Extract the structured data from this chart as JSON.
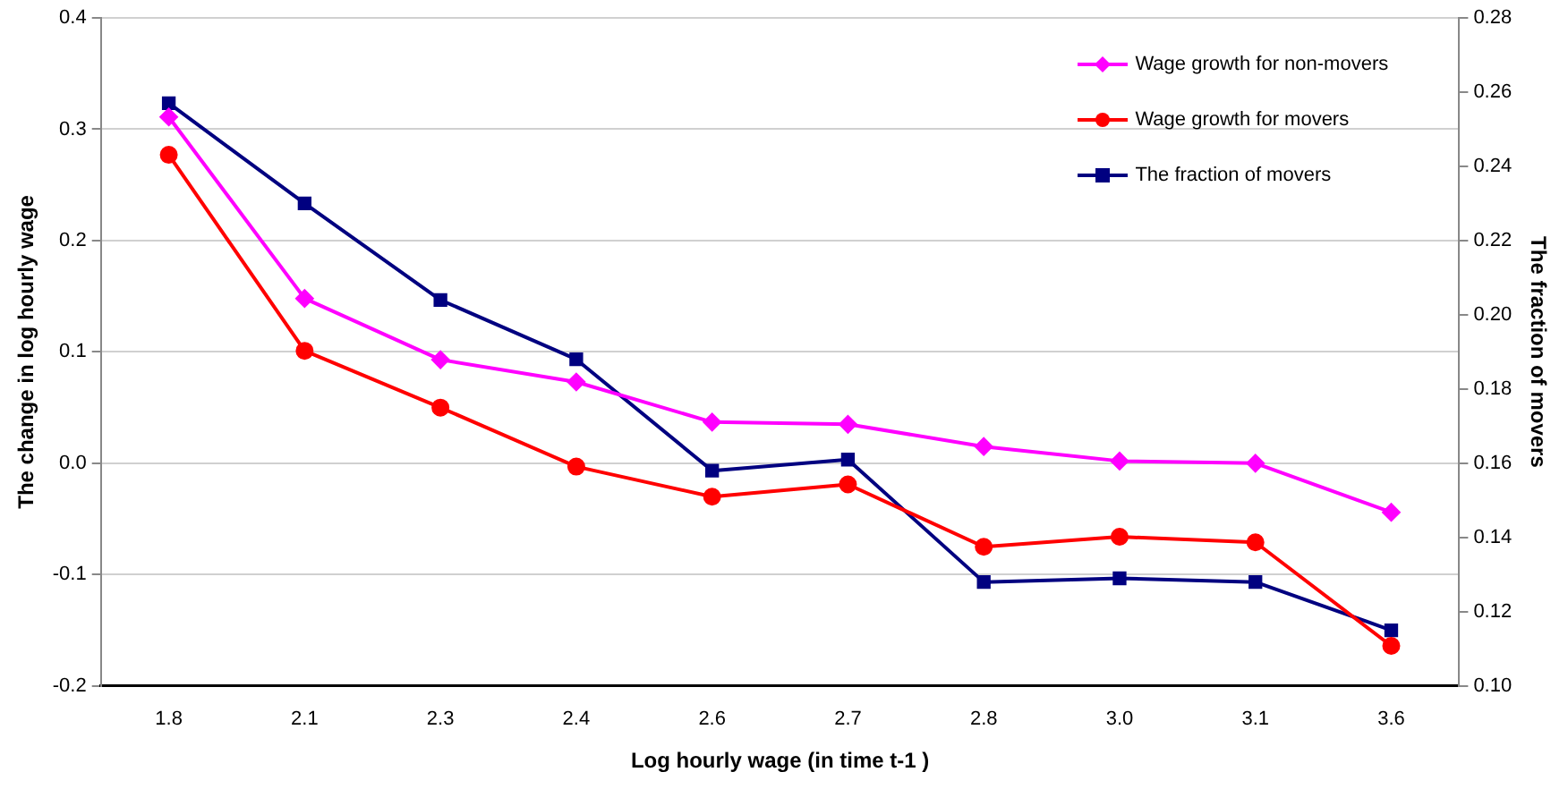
{
  "chart_data": {
    "type": "line",
    "categories": [
      "1.8",
      "2.1",
      "2.3",
      "2.4",
      "2.6",
      "2.7",
      "2.8",
      "3.0",
      "3.1",
      "3.6"
    ],
    "series": [
      {
        "name": "Wage growth for non-movers",
        "color": "#ff00ff",
        "marker": "diamond",
        "values": [
          0.311,
          0.148,
          0.093,
          0.073,
          0.037,
          0.035,
          0.015,
          0.002,
          0.0,
          -0.044
        ]
      },
      {
        "name": "Wage growth for movers",
        "color": "#ff0000",
        "marker": "circle",
        "values": [
          0.277,
          0.101,
          0.05,
          -0.003,
          -0.03,
          -0.019,
          -0.075,
          -0.066,
          -0.071,
          -0.164
        ]
      },
      {
        "name": "The fraction of movers",
        "color": "#000080",
        "marker": "square",
        "axis": "y2",
        "values": [
          0.257,
          0.23,
          0.204,
          0.188,
          0.158,
          0.161,
          0.128,
          0.129,
          0.128,
          0.115
        ]
      }
    ],
    "xlabel": "Log hourly wage (in time t-1 )",
    "ylabel": "The change in log hourly wage",
    "y2label": "The fraction of movers",
    "ylim": [
      -0.2,
      0.4
    ],
    "yticks": [
      {
        "value": -0.2,
        "label": "-0.2"
      },
      {
        "value": -0.1,
        "label": "-0.1"
      },
      {
        "value": 0,
        "label": "0.0"
      },
      {
        "value": 0.1,
        "label": "0.1"
      },
      {
        "value": 0.2,
        "label": "0.2"
      },
      {
        "value": 0.3,
        "label": "0.3"
      },
      {
        "value": 0.4,
        "label": "0.4"
      }
    ],
    "y2lim": [
      0.1,
      0.28
    ],
    "y2ticks": [
      {
        "value": 0.1,
        "label": "0.10"
      },
      {
        "value": 0.12,
        "label": "0.12"
      },
      {
        "value": 0.14,
        "label": "0.14"
      },
      {
        "value": 0.16,
        "label": "0.16"
      },
      {
        "value": 0.18,
        "label": "0.18"
      },
      {
        "value": 0.2,
        "label": "0.20"
      },
      {
        "value": 0.22,
        "label": "0.22"
      },
      {
        "value": 0.24,
        "label": "0.24"
      },
      {
        "value": 0.26,
        "label": "0.26"
      },
      {
        "value": 0.28,
        "label": "0.28"
      }
    ],
    "grid": "y",
    "legend": "top right",
    "line_style": "solid"
  }
}
